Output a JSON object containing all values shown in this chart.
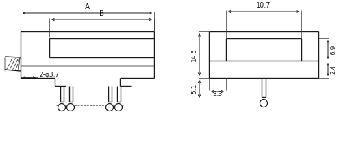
{
  "bg_color": "#ffffff",
  "lc": "#1a1a1a",
  "lw": 1.0,
  "left": {
    "dim_A": "A",
    "dim_B": "B",
    "hole_label": "2-φ3.7"
  },
  "right": {
    "d107": "10.7",
    "d145": "14.5",
    "d69": "6.9",
    "d24": "2.4",
    "d51": "5.1",
    "d33": "3.3"
  }
}
